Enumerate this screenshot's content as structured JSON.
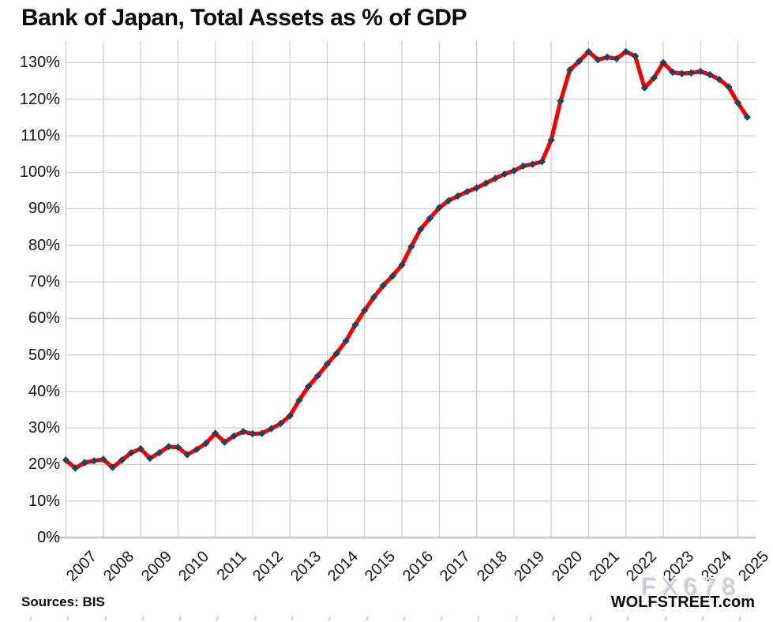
{
  "title": "Bank of Japan, Total Assets as % of GDP",
  "footer": {
    "sources": "Sources: BIS",
    "branding": "WOLFSTREET.com",
    "watermark": "FX678"
  },
  "colors": {
    "line": "#F20000",
    "marker": "#24415F",
    "gridline": "#CDCDCD",
    "axis_line": "#C2C2C2",
    "text": "#141414",
    "watermark_fill": "#B5CCE9",
    "watermark_shadow": "#ECDAC3"
  },
  "chart_data": {
    "type": "line",
    "title": "Bank of Japan, Total Assets as % of GDP",
    "x_unit": "quarterly",
    "start": "2007-Q1",
    "end": "2025-Q2",
    "year_labels": [
      "2007",
      "2008",
      "2009",
      "2010",
      "2011",
      "2012",
      "2013",
      "2014",
      "2015",
      "2016",
      "2017",
      "2018",
      "2019",
      "2020",
      "2021",
      "2022",
      "2023",
      "2024",
      "2025"
    ],
    "y_tick_labels": [
      "0%",
      "10%",
      "20%",
      "30%",
      "40%",
      "50%",
      "60%",
      "70%",
      "80%",
      "90%",
      "100%",
      "110%",
      "120%",
      "130%"
    ],
    "ylim": [
      0,
      130
    ],
    "ytick_step": 10,
    "grid": true,
    "legend": "none",
    "marker": "diamond",
    "values": [
      21.2,
      19.0,
      20.5,
      21.0,
      21.4,
      19.2,
      21.2,
      23.2,
      24.3,
      21.7,
      23.2,
      24.9,
      24.7,
      22.7,
      24.1,
      25.8,
      28.5,
      26.1,
      27.8,
      29.0,
      28.4,
      28.5,
      29.8,
      31.2,
      33.3,
      37.6,
      41.4,
      44.3,
      47.5,
      50.4,
      53.8,
      58.2,
      62.2,
      65.8,
      69.0,
      71.6,
      74.6,
      79.6,
      84.4,
      87.4,
      90.3,
      92.2,
      93.5,
      94.7,
      95.7,
      97.0,
      98.3,
      99.5,
      100.4,
      101.7,
      102.2,
      102.9,
      108.8,
      119.5,
      128.0,
      130.4,
      133.0,
      130.8,
      131.5,
      131.1,
      133.0,
      131.8,
      123.1,
      125.8,
      130.0,
      127.4,
      127.0,
      127.2,
      127.6,
      126.7,
      125.4,
      123.4,
      119.0,
      115.1
    ]
  }
}
